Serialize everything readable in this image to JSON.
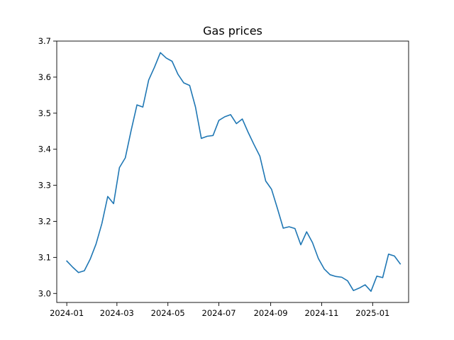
{
  "chart_data": {
    "type": "line",
    "title": "Gas prices",
    "xlabel": "",
    "ylabel": "",
    "grid": false,
    "legend": "none",
    "xlim": [
      "2023-12-20",
      "2025-02-13"
    ],
    "ylim": [
      2.975,
      3.7
    ],
    "x_ticks": [
      "2024-01-01",
      "2024-03-01",
      "2024-05-01",
      "2024-07-01",
      "2024-09-01",
      "2024-11-01",
      "2025-01-01"
    ],
    "x_tick_labels": [
      "2024-01",
      "2024-03",
      "2024-05",
      "2024-07",
      "2024-09",
      "2024-11",
      "2025-01"
    ],
    "y_ticks": [
      3.0,
      3.1,
      3.2,
      3.3,
      3.4,
      3.5,
      3.6,
      3.7
    ],
    "y_tick_labels": [
      "3.0",
      "3.1",
      "3.2",
      "3.3",
      "3.4",
      "3.5",
      "3.6",
      "3.7"
    ],
    "series": [
      {
        "color": "#1f77b4",
        "x": [
          "2024-01-01",
          "2024-01-08",
          "2024-01-15",
          "2024-01-22",
          "2024-01-29",
          "2024-02-05",
          "2024-02-12",
          "2024-02-19",
          "2024-02-26",
          "2024-03-04",
          "2024-03-11",
          "2024-03-18",
          "2024-03-25",
          "2024-04-01",
          "2024-04-08",
          "2024-04-15",
          "2024-04-22",
          "2024-04-29",
          "2024-05-06",
          "2024-05-13",
          "2024-05-20",
          "2024-05-27",
          "2024-06-03",
          "2024-06-10",
          "2024-06-17",
          "2024-06-24",
          "2024-07-01",
          "2024-07-08",
          "2024-07-15",
          "2024-07-22",
          "2024-07-29",
          "2024-08-05",
          "2024-08-12",
          "2024-08-19",
          "2024-08-26",
          "2024-09-02",
          "2024-09-09",
          "2024-09-16",
          "2024-09-23",
          "2024-09-30",
          "2024-10-07",
          "2024-10-14",
          "2024-10-21",
          "2024-10-28",
          "2024-11-04",
          "2024-11-11",
          "2024-11-18",
          "2024-11-25",
          "2024-12-02",
          "2024-12-09",
          "2024-12-16",
          "2024-12-23",
          "2024-12-30",
          "2025-01-06",
          "2025-01-13",
          "2025-01-20",
          "2025-01-27",
          "2025-02-03"
        ],
        "values": [
          3.09,
          3.073,
          3.058,
          3.063,
          3.095,
          3.137,
          3.194,
          3.269,
          3.249,
          3.349,
          3.376,
          3.452,
          3.523,
          3.517,
          3.592,
          3.628,
          3.668,
          3.653,
          3.644,
          3.608,
          3.584,
          3.577,
          3.517,
          3.43,
          3.436,
          3.438,
          3.48,
          3.49,
          3.496,
          3.471,
          3.484,
          3.447,
          3.413,
          3.381,
          3.312,
          3.289,
          3.236,
          3.181,
          3.185,
          3.18,
          3.135,
          3.171,
          3.141,
          3.097,
          3.068,
          3.052,
          3.047,
          3.045,
          3.035,
          3.008,
          3.015,
          3.024,
          3.006,
          3.048,
          3.044,
          3.109,
          3.104,
          3.082
        ]
      }
    ]
  }
}
